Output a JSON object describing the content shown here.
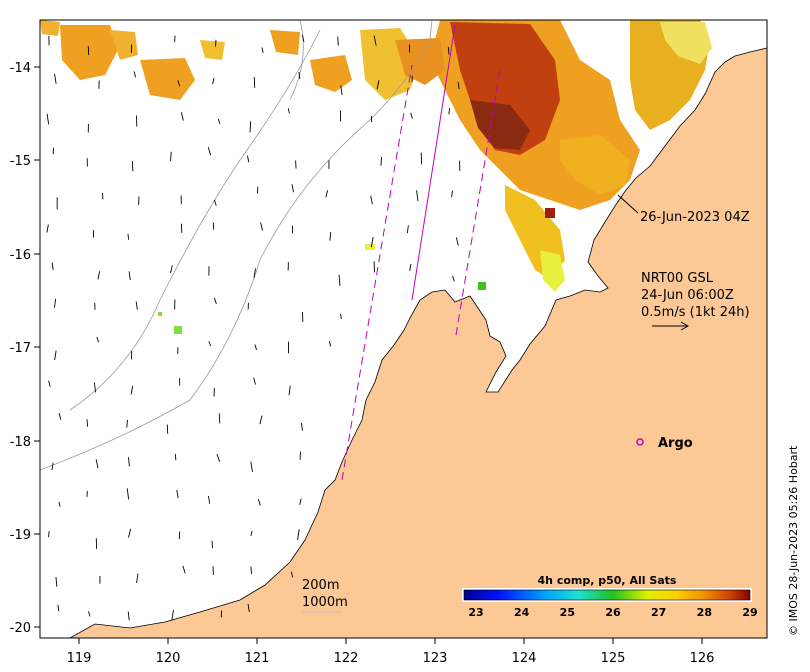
{
  "map": {
    "x_ticks": [
      "119",
      "120",
      "121",
      "122",
      "123",
      "124",
      "125",
      "126"
    ],
    "y_ticks": [
      "-14",
      "-15",
      "-16",
      "-17",
      "-18",
      "-19",
      "-20"
    ],
    "colors": {
      "land": "#fcc896",
      "ocean": "#ffffff",
      "track": "#c000c0",
      "isobath": "#999999"
    }
  },
  "annotations": {
    "pass_time": "26-Jun-2023 04Z",
    "current_product": "NRT00 GSL",
    "current_time": "24-Jun 06:00Z",
    "current_scale": "0.5m/s (1kt 24h)"
  },
  "argo": {
    "label": "Argo"
  },
  "isobaths": {
    "shallow": "200m",
    "deep": "1000m"
  },
  "colorbar": {
    "title": "4h comp, p50, All Sats",
    "ticks": [
      "23",
      "24",
      "25",
      "26",
      "27",
      "28",
      "29"
    ],
    "range": [
      23,
      29
    ]
  },
  "credit": "© IMOS 28-Jun-2023 05:26 Hobart"
}
